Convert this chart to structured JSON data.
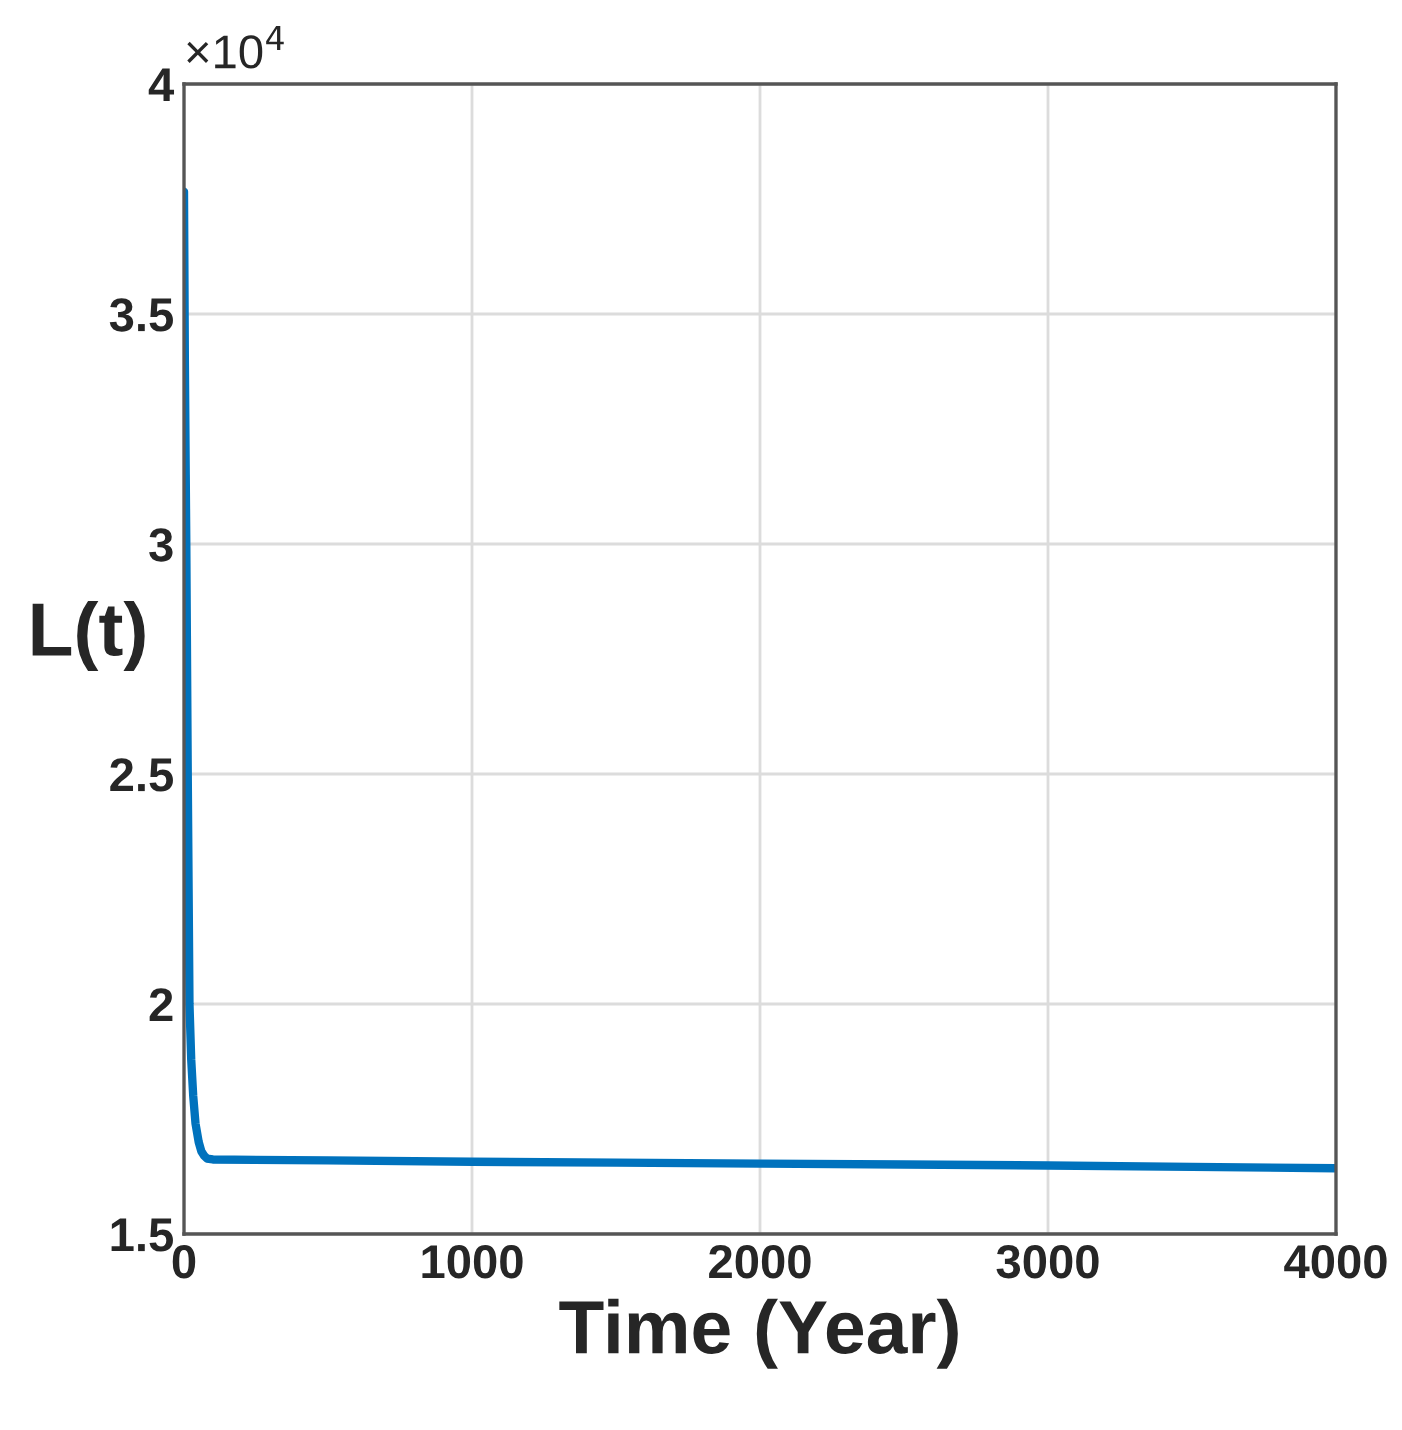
{
  "chart_data": {
    "type": "line",
    "xlabel": "Time (Year)",
    "ylabel": "L(t)",
    "annotations": [
      "×10$^{4}$"
    ],
    "series": [
      {
        "color": "#0072bd",
        "x": [
          0,
          3,
          6,
          8,
          10,
          13,
          16,
          19,
          25,
          32,
          40,
          51,
          60,
          70,
          80,
          100,
          500,
          1000,
          1500,
          2000,
          2500,
          3000,
          3500,
          4000
        ],
        "values": [
          3.766,
          3.4,
          3.15,
          3.0,
          2.8,
          2.5,
          2.25,
          2.0,
          1.88,
          1.8,
          1.74,
          1.7,
          1.68,
          1.67,
          1.664,
          1.662,
          1.66,
          1.657,
          1.655,
          1.653,
          1.651,
          1.649,
          1.646,
          1.643
        ]
      }
    ],
    "xlim": [
      0,
      4000
    ],
    "xticks": [
      0,
      1000,
      2000,
      3000,
      4000
    ],
    "ylim": [
      1.5,
      4
    ],
    "yticks": [
      1.5,
      2,
      2.5,
      3,
      3.5,
      4
    ],
    "grid": true,
    "line_style": "solid",
    "marker": "none",
    "legend": false
  }
}
